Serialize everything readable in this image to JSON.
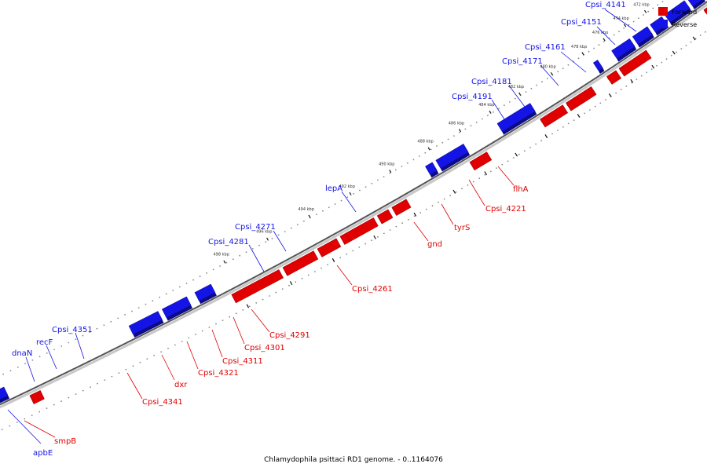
{
  "caption": "Chlamydophila psittaci RD1 genome. - 0..1164076",
  "colors": {
    "forward": "#e00000",
    "reverse": "#1414e6",
    "backbone": "#555555"
  },
  "legend": {
    "forward": "Forward",
    "reverse": "Reverse"
  },
  "ticks": [
    "470 kbp",
    "472 kbp",
    "474 kbp",
    "476 kbp",
    "478 kbp",
    "480 kbp",
    "482 kbp",
    "484 kbp",
    "486 kbp",
    "488 kbp",
    "490 kbp",
    "492 kbp",
    "494 kbp",
    "496 kbp",
    "498 kbp"
  ],
  "forward_genes": [
    "Cpsi_4221",
    "flhA",
    "tyrS",
    "gnd",
    "Cpsi_4261",
    "Cpsi_4291",
    "Cpsi_4301",
    "Cpsi_4311",
    "Cpsi_4321",
    "dxr",
    "Cpsi_4341",
    "smpB"
  ],
  "reverse_genes": [
    "Cpsi_4141",
    "Cpsi_4151",
    "Cpsi_4161",
    "Cpsi_4171",
    "Cpsi_4181",
    "Cpsi_4191",
    "lepA",
    "Cpsi_4271",
    "Cpsi_4281",
    "Cpsi_4351",
    "recF",
    "dnaN",
    "apbE"
  ]
}
